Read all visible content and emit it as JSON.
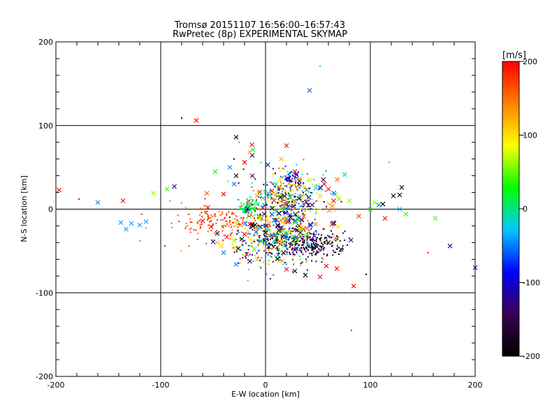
{
  "chart_data": {
    "type": "scatter",
    "title": "Tromsø 20151107 16:56:00–16:57:43",
    "subtitle": "RwPretec (8p) EXPERIMENTAL SKYMAP",
    "xlabel": "E-W location [km]",
    "ylabel": "N-S location [km]",
    "xlim": [
      -200,
      200
    ],
    "ylim": [
      -200,
      200
    ],
    "xticks": [
      "-200",
      "-100",
      "0",
      "100",
      "200"
    ],
    "yticks": [
      "-200",
      "-100",
      "0",
      "100",
      "200"
    ],
    "grid": true,
    "colorbar": {
      "label": "[m/s]",
      "range": [
        -200,
        200
      ],
      "ticks": [
        "200",
        "100",
        "0",
        "-100",
        "-200"
      ],
      "colormap": [
        "#000000",
        "#3a0050",
        "#0000ff",
        "#00c8ff",
        "#00ff00",
        "#ffff00",
        "#ff8000",
        "#ff0000"
      ]
    },
    "markers": [
      "x",
      "dot"
    ],
    "points": [
      {
        "x": -197,
        "y": 23,
        "v": 200,
        "m": "x"
      },
      {
        "x": -160,
        "y": 8,
        "v": -50,
        "m": "x"
      },
      {
        "x": -136,
        "y": 10,
        "v": 200,
        "m": "x"
      },
      {
        "x": -138,
        "y": -16,
        "v": -40,
        "m": "x"
      },
      {
        "x": -133,
        "y": -24,
        "v": -40,
        "m": "x"
      },
      {
        "x": -128,
        "y": -17,
        "v": -40,
        "m": "x"
      },
      {
        "x": -120,
        "y": -19,
        "v": -40,
        "m": "x"
      },
      {
        "x": -114,
        "y": -15,
        "v": -40,
        "m": "x"
      },
      {
        "x": -107,
        "y": 19,
        "v": 60,
        "m": "x"
      },
      {
        "x": -94,
        "y": 24,
        "v": 40,
        "m": "x"
      },
      {
        "x": -87,
        "y": 27,
        "v": -120,
        "m": "x"
      },
      {
        "x": -66,
        "y": 106,
        "v": 200,
        "m": "x"
      },
      {
        "x": -80,
        "y": 109,
        "v": -100,
        "m": "dot"
      },
      {
        "x": -56,
        "y": 19,
        "v": 160,
        "m": "x"
      },
      {
        "x": -48,
        "y": 45,
        "v": 30,
        "m": "x"
      },
      {
        "x": -28,
        "y": 86,
        "v": -200,
        "m": "x"
      },
      {
        "x": -25,
        "y": 80,
        "v": 20,
        "m": "dot"
      },
      {
        "x": -13,
        "y": 77,
        "v": 200,
        "m": "x"
      },
      {
        "x": -15,
        "y": 68,
        "v": 120,
        "m": "x"
      },
      {
        "x": -12,
        "y": 71,
        "v": 20,
        "m": "x"
      },
      {
        "x": -30,
        "y": 60,
        "v": -200,
        "m": "dot"
      },
      {
        "x": -20,
        "y": 56,
        "v": 200,
        "m": "x"
      },
      {
        "x": -34,
        "y": 50,
        "v": -50,
        "m": "x"
      },
      {
        "x": -28,
        "y": 40,
        "v": -200,
        "m": "x"
      },
      {
        "x": -30,
        "y": 30,
        "v": -50,
        "m": "x"
      },
      {
        "x": -40,
        "y": 18,
        "v": 200,
        "m": "x"
      },
      {
        "x": -55,
        "y": 2,
        "v": 200,
        "m": "x"
      },
      {
        "x": -60,
        "y": -14,
        "v": 200,
        "m": "x"
      },
      {
        "x": -52,
        "y": -21,
        "v": 200,
        "m": "x"
      },
      {
        "x": -46,
        "y": -29,
        "v": -200,
        "m": "x"
      },
      {
        "x": -50,
        "y": -39,
        "v": -120,
        "m": "x"
      },
      {
        "x": -42,
        "y": -44,
        "v": 100,
        "m": "x"
      },
      {
        "x": -37,
        "y": -33,
        "v": 200,
        "m": "x"
      },
      {
        "x": -30,
        "y": -38,
        "v": 60,
        "m": "x"
      },
      {
        "x": -40,
        "y": -52,
        "v": -50,
        "m": "x"
      },
      {
        "x": -26,
        "y": -47,
        "v": -200,
        "m": "x"
      },
      {
        "x": -28,
        "y": -66,
        "v": -50,
        "m": "x"
      },
      {
        "x": -18,
        "y": -54,
        "v": 200,
        "m": "x"
      },
      {
        "x": -8,
        "y": -60,
        "v": 120,
        "m": "x"
      },
      {
        "x": -20,
        "y": -30,
        "v": 200,
        "m": "x"
      },
      {
        "x": -15,
        "y": -18,
        "v": 200,
        "m": "x"
      },
      {
        "x": -6,
        "y": -10,
        "v": 60,
        "m": "x"
      },
      {
        "x": 0,
        "y": -28,
        "v": -200,
        "m": "x"
      },
      {
        "x": 3,
        "y": -45,
        "v": -200,
        "m": "x"
      },
      {
        "x": 8,
        "y": -38,
        "v": 0,
        "m": "x"
      },
      {
        "x": 12,
        "y": -55,
        "v": -50,
        "m": "x"
      },
      {
        "x": 16,
        "y": -62,
        "v": 120,
        "m": "x"
      },
      {
        "x": 20,
        "y": -72,
        "v": 200,
        "m": "x"
      },
      {
        "x": 28,
        "y": -74,
        "v": -200,
        "m": "x"
      },
      {
        "x": 38,
        "y": -79,
        "v": -200,
        "m": "x"
      },
      {
        "x": 52,
        "y": -81,
        "v": 200,
        "m": "x"
      },
      {
        "x": 58,
        "y": -68,
        "v": 200,
        "m": "x"
      },
      {
        "x": 68,
        "y": -71,
        "v": 200,
        "m": "x"
      },
      {
        "x": 72,
        "y": -48,
        "v": -200,
        "m": "x"
      },
      {
        "x": 60,
        "y": -40,
        "v": -200,
        "m": "x"
      },
      {
        "x": 48,
        "y": -44,
        "v": -200,
        "m": "x"
      },
      {
        "x": 40,
        "y": -30,
        "v": 60,
        "m": "x"
      },
      {
        "x": 32,
        "y": -20,
        "v": 200,
        "m": "x"
      },
      {
        "x": 24,
        "y": -10,
        "v": -200,
        "m": "x"
      },
      {
        "x": 18,
        "y": 0,
        "v": 0,
        "m": "x"
      },
      {
        "x": 14,
        "y": 14,
        "v": -200,
        "m": "x"
      },
      {
        "x": 6,
        "y": 22,
        "v": 200,
        "m": "x"
      },
      {
        "x": 10,
        "y": 30,
        "v": 0,
        "m": "x"
      },
      {
        "x": 22,
        "y": 36,
        "v": -100,
        "m": "x"
      },
      {
        "x": 28,
        "y": 45,
        "v": 200,
        "m": "x"
      },
      {
        "x": 20,
        "y": 76,
        "v": 200,
        "m": "x"
      },
      {
        "x": 15,
        "y": 60,
        "v": 120,
        "m": "x"
      },
      {
        "x": 42,
        "y": 142,
        "v": -60,
        "m": "x"
      },
      {
        "x": 52,
        "y": 171,
        "v": 0,
        "m": "dot"
      },
      {
        "x": 56,
        "y": 30,
        "v": 200,
        "m": "x"
      },
      {
        "x": 60,
        "y": 24,
        "v": 200,
        "m": "x"
      },
      {
        "x": 65,
        "y": 10,
        "v": 200,
        "m": "x"
      },
      {
        "x": 70,
        "y": 12,
        "v": 60,
        "m": "x"
      },
      {
        "x": 80,
        "y": 10,
        "v": 60,
        "m": "x"
      },
      {
        "x": 100,
        "y": 0,
        "v": 40,
        "m": "x"
      },
      {
        "x": 104,
        "y": 8,
        "v": 60,
        "m": "x"
      },
      {
        "x": 108,
        "y": 5,
        "v": -50,
        "m": "x"
      },
      {
        "x": 112,
        "y": 6,
        "v": -200,
        "m": "x"
      },
      {
        "x": 114,
        "y": -11,
        "v": 200,
        "m": "x"
      },
      {
        "x": 118,
        "y": 56,
        "v": 0,
        "m": "dot"
      },
      {
        "x": 122,
        "y": 16,
        "v": -200,
        "m": "x"
      },
      {
        "x": 128,
        "y": 17,
        "v": -200,
        "m": "x"
      },
      {
        "x": 130,
        "y": 26,
        "v": -200,
        "m": "x"
      },
      {
        "x": 128,
        "y": 0,
        "v": -40,
        "m": "x"
      },
      {
        "x": 134,
        "y": -6,
        "v": 40,
        "m": "x"
      },
      {
        "x": 162,
        "y": -11,
        "v": 40,
        "m": "x"
      },
      {
        "x": 176,
        "y": -44,
        "v": -120,
        "m": "x"
      },
      {
        "x": 200,
        "y": -70,
        "v": -100,
        "m": "x"
      },
      {
        "x": 84,
        "y": -92,
        "v": 200,
        "m": "x"
      },
      {
        "x": 96,
        "y": -78,
        "v": -200,
        "m": "dot"
      },
      {
        "x": 82,
        "y": -145,
        "v": 200,
        "m": "dot"
      },
      {
        "x": 155,
        "y": -52,
        "v": 200,
        "m": "dot"
      },
      {
        "x": -120,
        "y": -38,
        "v": 0,
        "m": "dot"
      },
      {
        "x": -96,
        "y": -44,
        "v": 200,
        "m": "dot"
      },
      {
        "x": -178,
        "y": 12,
        "v": 200,
        "m": "dot"
      }
    ],
    "clusters": [
      {
        "cx": -16,
        "cy": 2,
        "sx": 5,
        "sy": 5,
        "n": 90,
        "v": [
          0,
          40
        ],
        "m": "dot"
      },
      {
        "cx": 20,
        "cy": 15,
        "sx": 16,
        "sy": 16,
        "n": 320,
        "v": [
          -200,
          200
        ],
        "m": "dot"
      },
      {
        "cx": 8,
        "cy": -38,
        "sx": 22,
        "sy": 14,
        "n": 380,
        "v": [
          -200,
          200
        ],
        "m": "dot"
      },
      {
        "cx": -45,
        "cy": -15,
        "sx": 22,
        "sy": 10,
        "n": 150,
        "v": [
          140,
          200
        ],
        "m": "dot"
      },
      {
        "cx": 45,
        "cy": -42,
        "sx": 16,
        "sy": 8,
        "n": 220,
        "v": [
          -200,
          -120
        ],
        "m": "dot"
      },
      {
        "cx": 22,
        "cy": 38,
        "sx": 4,
        "sy": 3,
        "n": 25,
        "v": [
          -120,
          -80
        ],
        "m": "dot"
      },
      {
        "cx": 20,
        "cy": -10,
        "sx": 22,
        "sy": 26,
        "n": 160,
        "v": [
          -200,
          200
        ],
        "m": "x"
      }
    ]
  }
}
